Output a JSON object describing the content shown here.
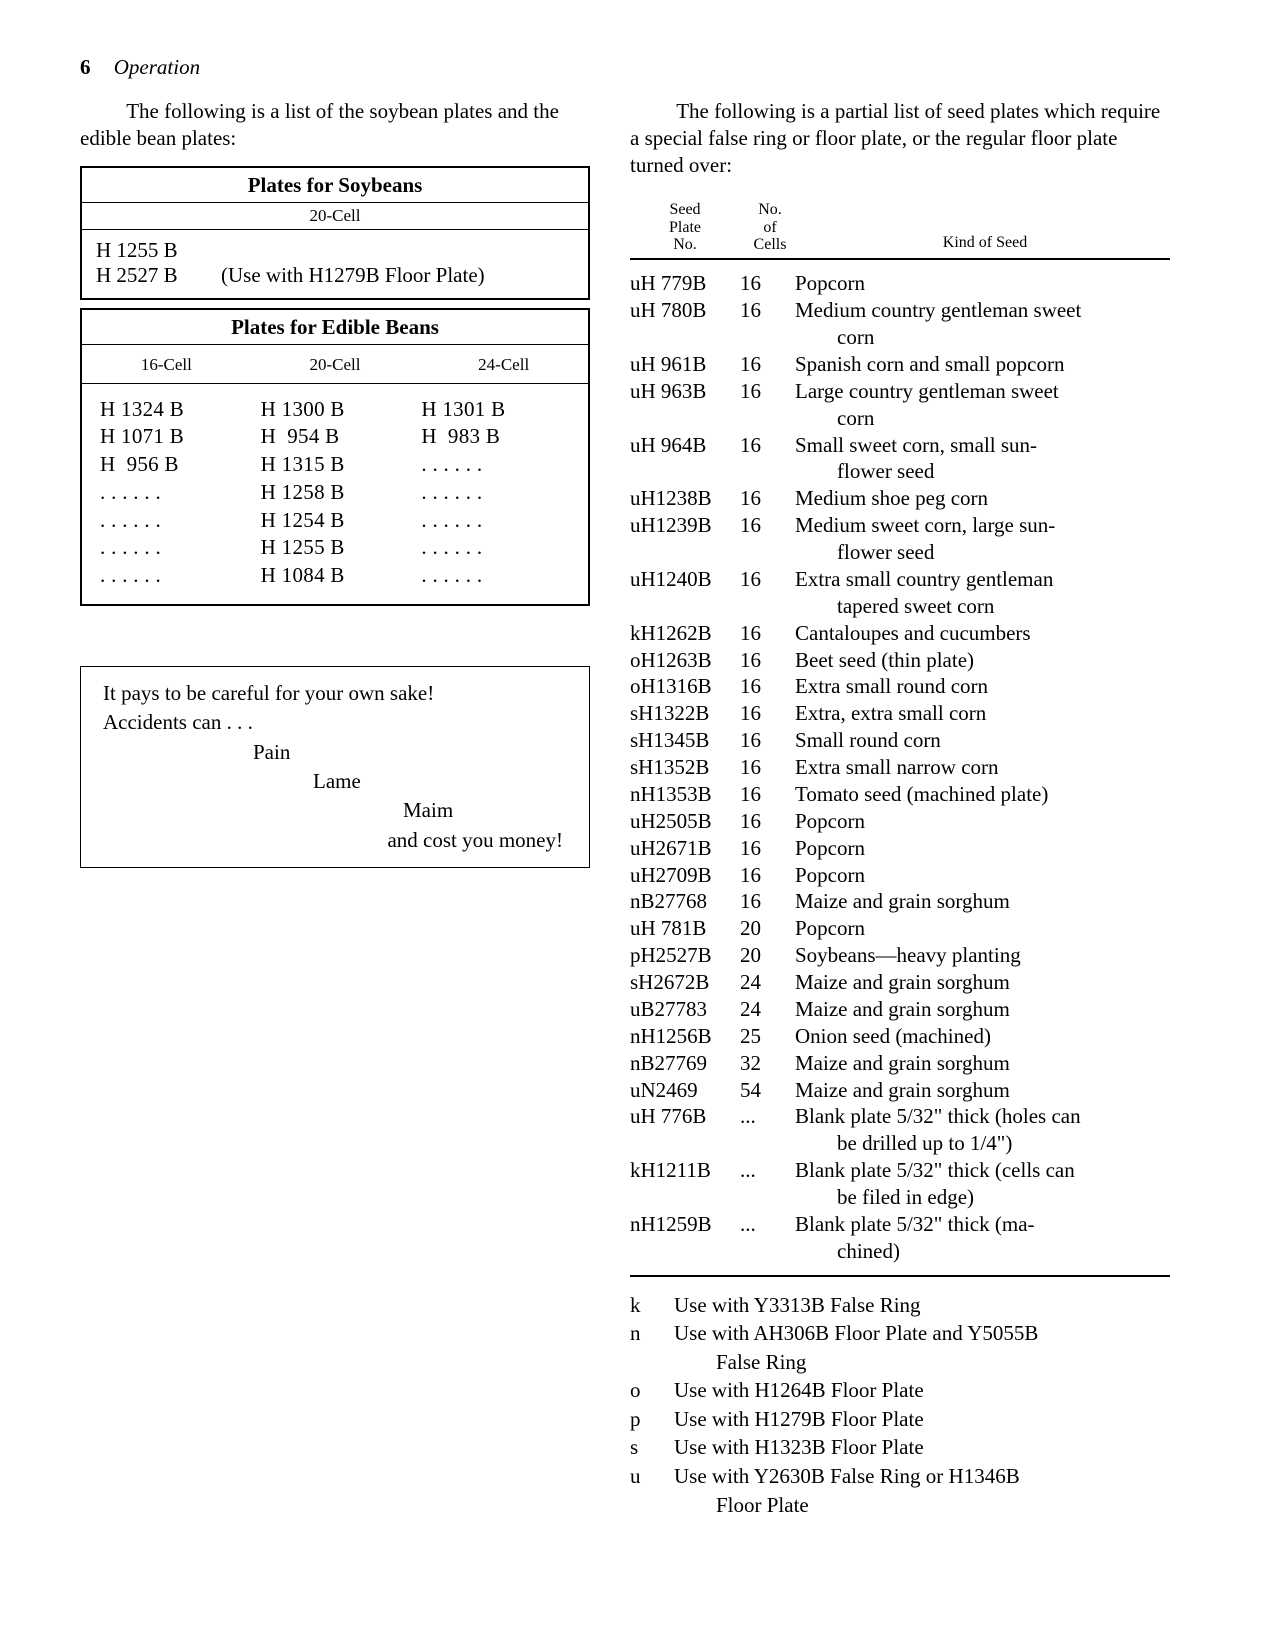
{
  "page": {
    "number": "6",
    "section": "Operation"
  },
  "left": {
    "intro": "The following is a list of the soybean plates and the edible bean plates:",
    "soy": {
      "title": "Plates for Soybeans",
      "sub": "20-Cell",
      "rows": [
        {
          "code": "H 1255 B",
          "note": ""
        },
        {
          "code": "H 2527 B",
          "note": "(Use with H1279B Floor Plate)"
        }
      ]
    },
    "edible": {
      "title": "Plates for Edible Beans",
      "heads": [
        "16-Cell",
        "20-Cell",
        "24-Cell"
      ],
      "cols": [
        [
          "H 1324 B",
          "H 1071 B",
          "H  956 B",
          ". . . . . .",
          ". . . . . .",
          ". . . . . .",
          ". . . . . ."
        ],
        [
          "H 1300 B",
          "H  954 B",
          "H 1315 B",
          "H 1258 B",
          "H 1254 B",
          "H 1255 B",
          "H 1084 B"
        ],
        [
          "H 1301 B",
          "H  983 B",
          ". . . . . .",
          ". . . . . .",
          ". . . . . .",
          ". . . . . .",
          ". . . . . ."
        ]
      ]
    },
    "safety": {
      "l1": "It pays to be careful for your own sake!",
      "l2": "Accidents can . . .",
      "w1": "Pain",
      "w2": "Lame",
      "w3": "Maim",
      "l3": "and cost you money!"
    }
  },
  "right": {
    "intro": "The following is a partial list of seed plates which require a special false ring or floor plate, or the regular floor plate turned over:",
    "head": {
      "c1a": "Seed",
      "c1b": "Plate",
      "c1c": "No.",
      "c2a": "No.",
      "c2b": "of",
      "c2c": "Cells",
      "c3": "Kind of Seed"
    },
    "rows": [
      {
        "p": "uH 779B",
        "c": "16",
        "k": [
          "Popcorn"
        ]
      },
      {
        "p": "uH 780B",
        "c": "16",
        "k": [
          "Medium country gentleman sweet",
          "corn"
        ]
      },
      {
        "p": "uH 961B",
        "c": "16",
        "k": [
          "Spanish corn and small popcorn"
        ]
      },
      {
        "p": "uH 963B",
        "c": "16",
        "k": [
          "Large country gentleman sweet",
          "corn"
        ]
      },
      {
        "p": "uH 964B",
        "c": "16",
        "k": [
          "Small sweet corn, small sun-",
          "flower seed"
        ]
      },
      {
        "p": "uH1238B",
        "c": "16",
        "k": [
          "Medium shoe peg corn"
        ]
      },
      {
        "p": "uH1239B",
        "c": "16",
        "k": [
          "Medium sweet corn, large sun-",
          "flower seed"
        ]
      },
      {
        "p": "uH1240B",
        "c": "16",
        "k": [
          "Extra small country gentleman",
          "tapered sweet corn"
        ]
      },
      {
        "p": "kH1262B",
        "c": "16",
        "k": [
          "Cantaloupes and cucumbers"
        ]
      },
      {
        "p": "oH1263B",
        "c": "16",
        "k": [
          "Beet seed (thin plate)"
        ]
      },
      {
        "p": "oH1316B",
        "c": "16",
        "k": [
          "Extra small round corn"
        ]
      },
      {
        "p": "sH1322B",
        "c": "16",
        "k": [
          "Extra, extra small corn"
        ]
      },
      {
        "p": "sH1345B",
        "c": "16",
        "k": [
          "Small round corn"
        ]
      },
      {
        "p": "sH1352B",
        "c": "16",
        "k": [
          "Extra small narrow corn"
        ]
      },
      {
        "p": "nH1353B",
        "c": "16",
        "k": [
          "Tomato seed (machined plate)"
        ]
      },
      {
        "p": "uH2505B",
        "c": "16",
        "k": [
          "Popcorn"
        ]
      },
      {
        "p": "uH2671B",
        "c": "16",
        "k": [
          "Popcorn"
        ]
      },
      {
        "p": "uH2709B",
        "c": "16",
        "k": [
          "Popcorn"
        ]
      },
      {
        "p": "nB27768",
        "c": "16",
        "k": [
          "Maize and grain sorghum"
        ]
      },
      {
        "p": "uH 781B",
        "c": "20",
        "k": [
          "Popcorn"
        ]
      },
      {
        "p": "pH2527B",
        "c": "20",
        "k": [
          "Soybeans—heavy planting"
        ]
      },
      {
        "p": "sH2672B",
        "c": "24",
        "k": [
          "Maize and grain sorghum"
        ]
      },
      {
        "p": "uB27783",
        "c": "24",
        "k": [
          "Maize and grain sorghum"
        ]
      },
      {
        "p": "nH1256B",
        "c": "25",
        "k": [
          "Onion seed (machined)"
        ]
      },
      {
        "p": "nB27769",
        "c": "32",
        "k": [
          "Maize and grain sorghum"
        ]
      },
      {
        "p": "uN2469",
        "c": "54",
        "k": [
          "Maize and grain sorghum"
        ]
      },
      {
        "p": "uH 776B",
        "c": "...",
        "k": [
          "Blank plate 5/32\" thick (holes can",
          "be drilled up to 1/4\")"
        ]
      },
      {
        "p": "kH1211B",
        "c": "...",
        "k": [
          "Blank plate 5/32\" thick (cells can",
          "be filed in edge)"
        ]
      },
      {
        "p": "nH1259B",
        "c": "...",
        "k": [
          "Blank plate 5/32\" thick (ma-",
          "chined)"
        ]
      }
    ],
    "notes": [
      {
        "k": "k",
        "t": [
          "Use with Y3313B False Ring"
        ]
      },
      {
        "k": "n",
        "t": [
          "Use with AH306B Floor Plate and Y5055B",
          "False Ring"
        ]
      },
      {
        "k": "o",
        "t": [
          "Use with H1264B Floor Plate"
        ]
      },
      {
        "k": "p",
        "t": [
          "Use with H1279B Floor Plate"
        ]
      },
      {
        "k": "s",
        "t": [
          "Use with H1323B Floor Plate"
        ]
      },
      {
        "k": "u",
        "t": [
          "Use with Y2630B False Ring or H1346B",
          "Floor Plate"
        ]
      }
    ]
  }
}
